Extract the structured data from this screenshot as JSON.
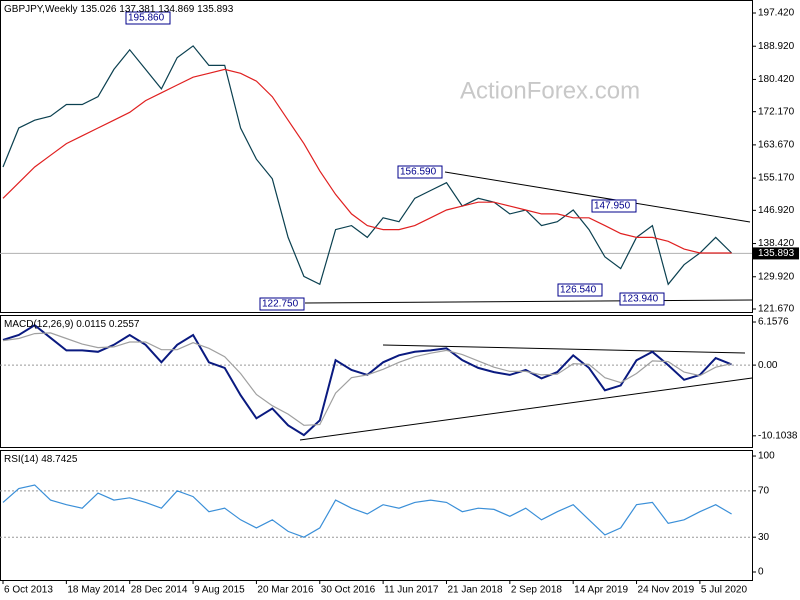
{
  "chart_data": [
    {
      "type": "line",
      "title": "GBPJPY,Weekly",
      "subtitle": "135.026 137.381 134.869 135.893",
      "watermark": "ActionForex.com",
      "xlim": [
        -0.19,
        47.29
      ],
      "ylim": [
        120.9,
        200.75
      ],
      "grid": false,
      "yticks": [
        {
          "value": 197.42,
          "label": "197.420"
        },
        {
          "value": 188.92,
          "label": "188.920"
        },
        {
          "value": 180.42,
          "label": "180.420"
        },
        {
          "value": 172.17,
          "label": "172.170"
        },
        {
          "value": 163.67,
          "label": "163.670"
        },
        {
          "value": 155.17,
          "label": "155.170"
        },
        {
          "value": 146.92,
          "label": "146.920"
        },
        {
          "value": 138.42,
          "label": "138.420"
        },
        {
          "value": 129.92,
          "label": "129.920"
        },
        {
          "value": 121.67,
          "label": "121.670"
        }
      ],
      "last_value": 135.893,
      "annotations": [
        "195.860",
        "156.590",
        "147.950",
        "126.540",
        "123.940",
        "122.750"
      ],
      "series": [
        {
          "color": "#0b4050",
          "values": [
            158,
            168,
            170,
            171,
            174,
            174,
            176,
            183,
            188,
            183,
            178,
            186,
            189,
            184,
            184,
            168,
            160,
            155,
            140,
            130,
            128,
            142,
            143,
            140,
            145,
            144,
            150,
            152,
            154,
            148,
            150,
            149,
            146,
            147,
            143,
            144,
            147,
            142,
            135,
            132,
            140,
            143,
            128,
            133,
            136,
            140,
            136
          ]
        },
        {
          "color": "#e02020",
          "values": [
            150,
            154,
            158,
            161,
            164,
            166,
            168,
            170,
            172,
            175,
            177,
            179,
            181,
            182,
            183,
            182,
            180,
            176,
            170,
            164,
            157,
            151,
            146,
            143,
            142,
            142,
            143,
            145,
            147,
            148,
            149,
            149,
            148,
            147,
            146,
            146,
            145,
            145,
            143,
            141,
            140,
            140,
            139,
            137,
            136,
            136,
            136
          ]
        }
      ]
    },
    {
      "type": "line",
      "title": "MACD(12,26,9) 0.0115 0.2557",
      "xlim": [
        -0.19,
        47.29
      ],
      "ylim": [
        -11.7,
        7.16
      ],
      "grid": true,
      "yticks": [
        6.1576,
        {
          "value": 0,
          "label": "0.00"
        },
        -10.1038
      ],
      "series": [
        {
          "color": "#0a1a80",
          "values": [
            3.6,
            4.3,
            5.7,
            3.9,
            2.1,
            2.1,
            1.9,
            2.9,
            4.3,
            2.9,
            0.4,
            2.9,
            4.3,
            0.4,
            -0.4,
            -4.3,
            -7.6,
            -6.2,
            -8.6,
            -10,
            -7.9,
            0.7,
            -0.7,
            -1.4,
            0.4,
            1.4,
            1.9,
            2.1,
            2.4,
            0.7,
            -0.4,
            -1,
            -1.4,
            -0.7,
            -1.9,
            -1,
            1.4,
            -0.4,
            -3.6,
            -2.9,
            0.7,
            1.9,
            0,
            -2.1,
            -1.4,
            1,
            0.1
          ]
        },
        {
          "color": "#a0a0a0",
          "values": [
            3.5,
            3.8,
            4.5,
            4.6,
            3.8,
            3.0,
            2.5,
            2.6,
            3.3,
            3.3,
            2.2,
            2.2,
            3.2,
            2.4,
            1.2,
            -1.2,
            -4.2,
            -5.8,
            -7.0,
            -8.6,
            -8.5,
            -4.0,
            -1.8,
            -1.4,
            -0.6,
            0.4,
            1.2,
            1.7,
            2.1,
            1.5,
            0.6,
            -0.3,
            -0.9,
            -0.9,
            -1.4,
            -1.3,
            0.2,
            0.1,
            -1.8,
            -2.5,
            -1.2,
            0.6,
            0.5,
            -1.0,
            -1.5,
            -0.3,
            0.2
          ]
        }
      ]
    },
    {
      "type": "line",
      "title": "RSI(14) 48.7425",
      "xlim": [
        -0.19,
        47.29
      ],
      "ylim": [
        -6.9,
        105.2
      ],
      "grid": true,
      "yticks": [
        100,
        70,
        30,
        0
      ],
      "xticks": [
        {
          "value": 0,
          "label": "6 Oct 2013"
        },
        {
          "value": 4,
          "label": "18 May 2014"
        },
        {
          "value": 8,
          "label": "28 Dec 2014"
        },
        {
          "value": 12,
          "label": "9 Aug 2015"
        },
        {
          "value": 16,
          "label": "20 Mar 2016"
        },
        {
          "value": 20,
          "label": "30 Oct 2016"
        },
        {
          "value": 24,
          "label": "11 Jun 2017"
        },
        {
          "value": 28,
          "label": "21 Jan 2018"
        },
        {
          "value": 32,
          "label": "2 Sep 2018"
        },
        {
          "value": 36,
          "label": "14 Apr 2019"
        },
        {
          "value": 40,
          "label": "24 Nov 2019"
        },
        {
          "value": 44,
          "label": "5 Jul 2020"
        }
      ],
      "series": [
        {
          "color": "#3a8fd8",
          "values": [
            60,
            72,
            75,
            62,
            58,
            55,
            68,
            62,
            64,
            60,
            55,
            70,
            65,
            52,
            55,
            45,
            38,
            45,
            35,
            30,
            38,
            62,
            55,
            50,
            58,
            55,
            60,
            62,
            60,
            52,
            55,
            54,
            48,
            55,
            45,
            52,
            58,
            45,
            32,
            38,
            58,
            60,
            42,
            45,
            52,
            58,
            50
          ]
        }
      ]
    }
  ]
}
